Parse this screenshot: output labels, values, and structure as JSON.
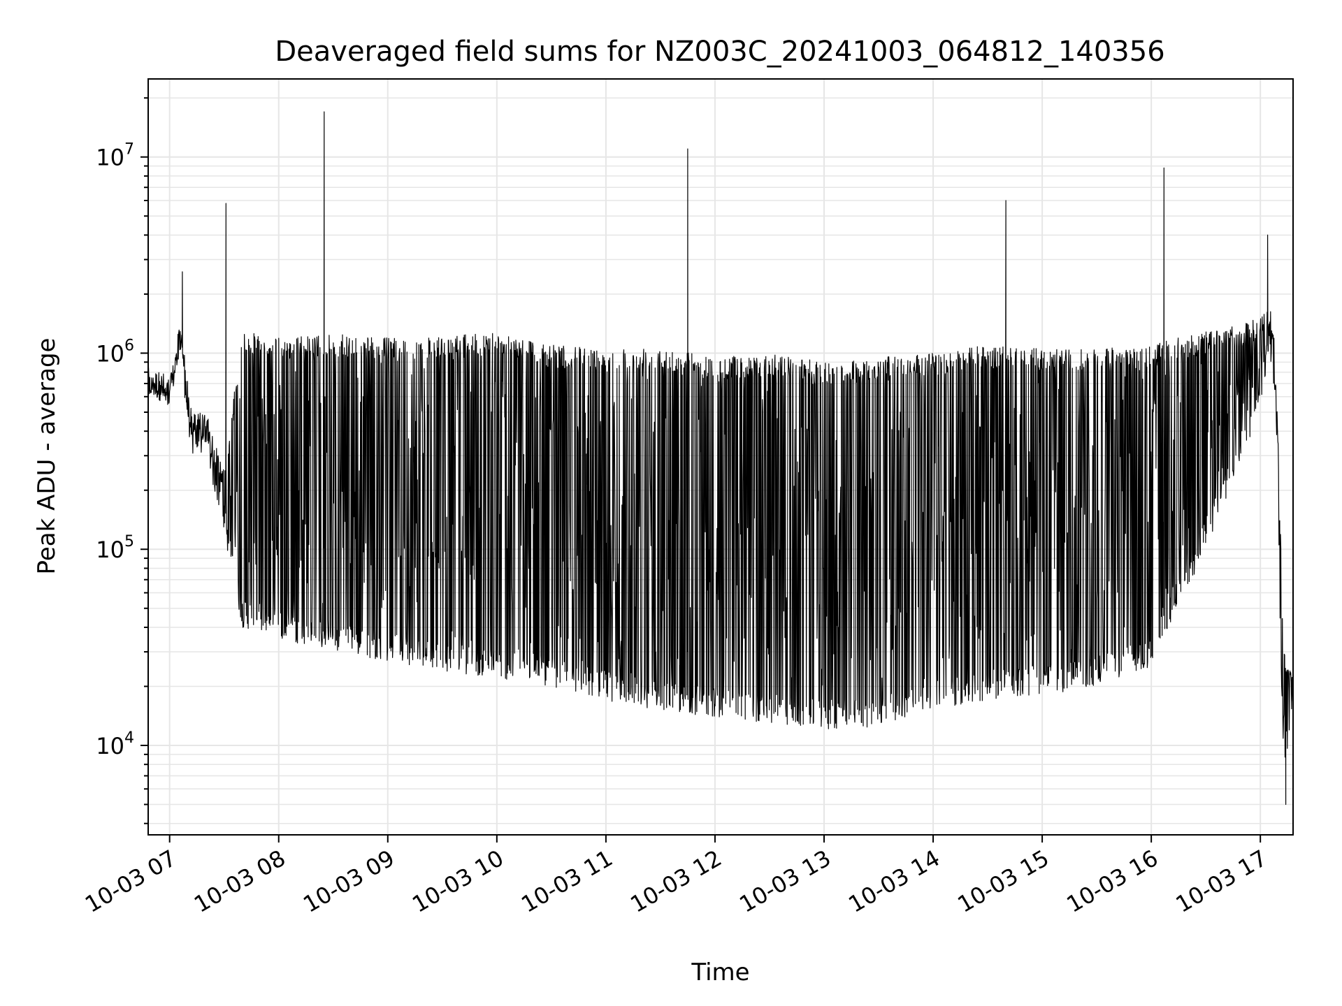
{
  "chart_data": {
    "type": "line",
    "title": "Deaveraged field sums for NZ003C_20241003_064812_140356",
    "xlabel": "Time",
    "ylabel": "Peak ADU - average",
    "yscale": "log",
    "grid": true,
    "line_color": "#000000",
    "grid_color": "#e6e6e6",
    "xlim": [
      "2024-10-03 06:48:12",
      "2024-10-03 17:18:00"
    ],
    "ylim": [
      3500,
      25000000
    ],
    "x_ticks": [
      {
        "value": "2024-10-03 07:00",
        "label": "10-03 07"
      },
      {
        "value": "2024-10-03 08:00",
        "label": "10-03 08"
      },
      {
        "value": "2024-10-03 09:00",
        "label": "10-03 09"
      },
      {
        "value": "2024-10-03 10:00",
        "label": "10-03 10"
      },
      {
        "value": "2024-10-03 11:00",
        "label": "10-03 11"
      },
      {
        "value": "2024-10-03 12:00",
        "label": "10-03 12"
      },
      {
        "value": "2024-10-03 13:00",
        "label": "10-03 13"
      },
      {
        "value": "2024-10-03 14:00",
        "label": "10-03 14"
      },
      {
        "value": "2024-10-03 15:00",
        "label": "10-03 15"
      },
      {
        "value": "2024-10-03 16:00",
        "label": "10-03 16"
      },
      {
        "value": "2024-10-03 17:00",
        "label": "10-03 17"
      }
    ],
    "y_ticks": [
      {
        "value": 10000,
        "base": "10",
        "exp": "4"
      },
      {
        "value": 100000,
        "base": "10",
        "exp": "5"
      },
      {
        "value": 1000000,
        "base": "10",
        "exp": "6"
      },
      {
        "value": 10000000,
        "base": "10",
        "exp": "7"
      }
    ],
    "envelope": {
      "x": [
        "2024-10-03 06:48",
        "2024-10-03 07:00",
        "2024-10-03 07:06",
        "2024-10-03 07:12",
        "2024-10-03 07:20",
        "2024-10-03 07:30",
        "2024-10-03 07:40",
        "2024-10-03 08:00",
        "2024-10-03 08:30",
        "2024-10-03 09:00",
        "2024-10-03 09:30",
        "2024-10-03 10:00",
        "2024-10-03 10:30",
        "2024-10-03 11:00",
        "2024-10-03 11:30",
        "2024-10-03 12:00",
        "2024-10-03 12:30",
        "2024-10-03 13:00",
        "2024-10-03 13:30",
        "2024-10-03 14:00",
        "2024-10-03 14:30",
        "2024-10-03 15:00",
        "2024-10-03 15:30",
        "2024-10-03 16:00",
        "2024-10-03 16:30",
        "2024-10-03 17:00",
        "2024-10-03 17:05",
        "2024-10-03 17:08",
        "2024-10-03 17:10",
        "2024-10-03 17:12",
        "2024-10-03 17:14",
        "2024-10-03 17:18"
      ],
      "high": [
        800000,
        700000,
        1500000,
        500000,
        500000,
        250000,
        1300000,
        1200000,
        1250000,
        1200000,
        1200000,
        1300000,
        1100000,
        1050000,
        1100000,
        950000,
        1000000,
        900000,
        950000,
        1000000,
        1100000,
        1050000,
        1050000,
        1100000,
        1300000,
        1500000,
        1800000,
        1300000,
        300000,
        60000,
        25000,
        24000
      ],
      "low": [
        600000,
        550000,
        900000,
        300000,
        300000,
        120000,
        40000,
        35000,
        30000,
        27000,
        24000,
        22000,
        20000,
        17000,
        15000,
        14000,
        13000,
        12000,
        12500,
        15000,
        17000,
        18000,
        20000,
        25000,
        100000,
        500000,
        1000000,
        600000,
        100000,
        12000,
        8000,
        15000
      ]
    },
    "spikes": [
      {
        "x": "2024-10-03 07:07",
        "y": 2600000
      },
      {
        "x": "2024-10-03 07:31",
        "y": 5800000
      },
      {
        "x": "2024-10-03 08:25",
        "y": 17000000
      },
      {
        "x": "2024-10-03 11:45",
        "y": 11000000
      },
      {
        "x": "2024-10-03 14:40",
        "y": 6000000
      },
      {
        "x": "2024-10-03 16:07",
        "y": 8800000
      },
      {
        "x": "2024-10-03 17:04",
        "y": 4000000
      }
    ],
    "minimum": {
      "x": "2024-10-03 17:14",
      "y": 5000
    }
  }
}
